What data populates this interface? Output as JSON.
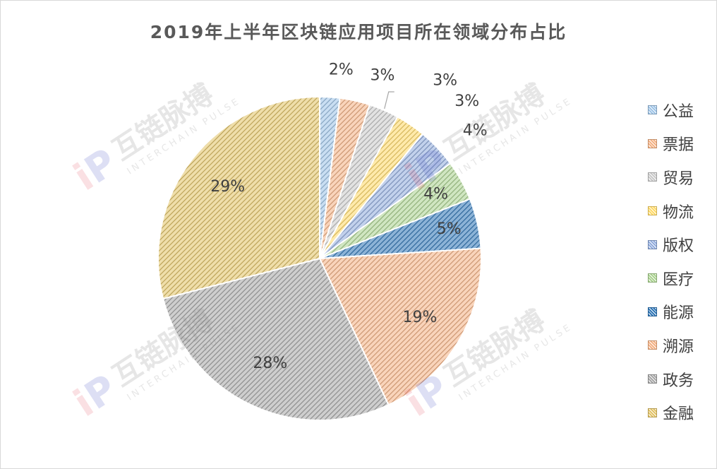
{
  "chart_data": {
    "type": "pie",
    "title": "2019年上半年区块链应用项目所在领域分布占比",
    "categories": [
      "公益",
      "票据",
      "贸易",
      "物流",
      "版权",
      "医疗",
      "能源",
      "溯源",
      "政务",
      "金融"
    ],
    "values": [
      2,
      3,
      3,
      3,
      4,
      4,
      5,
      19,
      28,
      29
    ],
    "labels": [
      "2%",
      "3%",
      "3%",
      "3%",
      "4%",
      "4%",
      "5%",
      "19%",
      "28%",
      "29%"
    ],
    "colors": [
      "#9dc3e6",
      "#f4b183",
      "#c9c9c9",
      "#ffd966",
      "#8faadc",
      "#a9d18e",
      "#2e75b6",
      "#f4b183",
      "#a6a6a6",
      "#e2c264"
    ],
    "legend_position": "right",
    "start_angle": "12 o'clock, clockwise"
  },
  "watermark": {
    "brand": "互链脉搏",
    "sub": "INTERCHAIN PULSE"
  }
}
